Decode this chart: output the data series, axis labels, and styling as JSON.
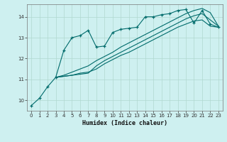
{
  "xlabel": "Humidex (Indice chaleur)",
  "background_color": "#cef0f0",
  "line_color": "#006b6b",
  "grid_color": "#b0d8d0",
  "xlim": [
    -0.5,
    23.5
  ],
  "ylim": [
    9.5,
    14.6
  ],
  "yticks": [
    10,
    11,
    12,
    13,
    14
  ],
  "xticks": [
    0,
    1,
    2,
    3,
    4,
    5,
    6,
    7,
    8,
    9,
    10,
    11,
    12,
    13,
    14,
    15,
    16,
    17,
    18,
    19,
    20,
    21,
    22,
    23
  ],
  "line1_x": [
    0,
    1,
    2,
    3,
    4,
    5,
    6,
    7,
    8,
    9,
    10,
    11,
    12,
    13,
    14,
    15,
    16,
    17,
    18,
    19,
    20,
    21,
    22,
    23
  ],
  "line1_y": [
    9.75,
    10.1,
    10.65,
    11.1,
    12.4,
    13.0,
    13.1,
    13.35,
    12.55,
    12.6,
    13.25,
    13.4,
    13.45,
    13.5,
    14.0,
    14.0,
    14.1,
    14.15,
    14.3,
    14.35,
    13.7,
    14.3,
    13.65,
    13.5
  ],
  "line2_x": [
    3,
    4,
    5,
    6,
    7,
    8,
    9,
    10,
    11,
    12,
    13,
    14,
    15,
    16,
    17,
    18,
    19,
    20,
    21,
    22,
    23
  ],
  "line2_y": [
    11.1,
    11.15,
    11.2,
    11.25,
    11.3,
    11.65,
    11.9,
    12.1,
    12.3,
    12.5,
    12.7,
    12.9,
    13.1,
    13.3,
    13.5,
    13.7,
    13.9,
    14.05,
    14.15,
    13.85,
    13.55
  ],
  "line3_x": [
    3,
    4,
    5,
    6,
    7,
    8,
    9,
    10,
    11,
    12,
    13,
    14,
    15,
    16,
    17,
    18,
    19,
    20,
    21,
    22,
    23
  ],
  "line3_y": [
    11.1,
    11.15,
    11.2,
    11.3,
    11.35,
    11.5,
    11.75,
    11.95,
    12.15,
    12.3,
    12.5,
    12.7,
    12.9,
    13.1,
    13.3,
    13.5,
    13.65,
    13.8,
    13.85,
    13.55,
    13.5
  ],
  "line4_x": [
    3,
    4,
    5,
    6,
    7,
    8,
    9,
    10,
    11,
    12,
    13,
    14,
    15,
    16,
    17,
    18,
    19,
    20,
    21,
    22,
    23
  ],
  "line4_y": [
    11.1,
    11.2,
    11.35,
    11.5,
    11.65,
    11.9,
    12.1,
    12.3,
    12.55,
    12.75,
    12.95,
    13.15,
    13.35,
    13.55,
    13.75,
    13.95,
    14.15,
    14.3,
    14.4,
    14.2,
    13.55
  ]
}
